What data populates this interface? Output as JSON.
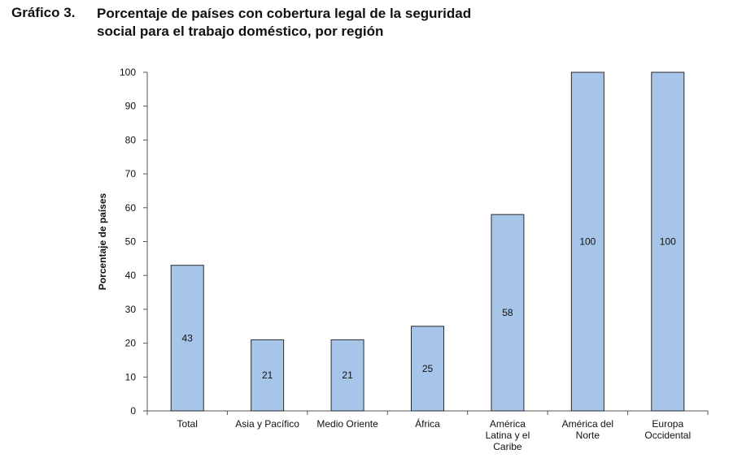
{
  "figure": {
    "number": "Gráfico 3.",
    "title_line1": "Porcentaje de países con cobertura legal de la seguridad",
    "title_line2": "social para el trabajo doméstico, por región"
  },
  "chart_data": {
    "type": "bar",
    "categories": [
      [
        "Total"
      ],
      [
        "Asia y Pacífico"
      ],
      [
        "Medio Oriente"
      ],
      [
        "África"
      ],
      [
        "América",
        "Latina y el",
        "Caribe"
      ],
      [
        "América del",
        "Norte"
      ],
      [
        "Europa",
        "Occidental"
      ]
    ],
    "values": [
      43,
      21,
      21,
      25,
      58,
      100,
      100
    ],
    "value_labels": [
      "43",
      "21",
      "21",
      "25",
      "58",
      "100",
      "100"
    ],
    "ylabel": "Porcentaje de países",
    "ylim": [
      0,
      100
    ],
    "yticks": [
      0,
      10,
      20,
      30,
      40,
      50,
      60,
      70,
      80,
      90,
      100
    ],
    "grid": false,
    "bar_color": "#a6c5e8",
    "bar_edge_color": "#2b2b2b"
  }
}
